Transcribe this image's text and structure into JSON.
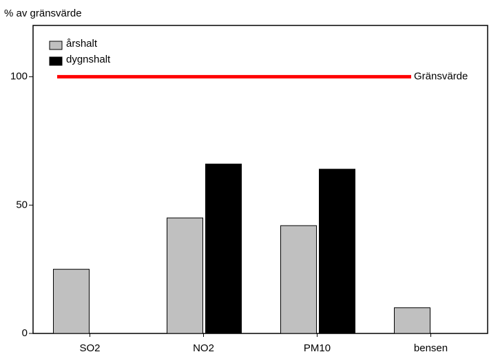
{
  "chart_data": {
    "type": "bar",
    "y_label": "% av gränsvärde",
    "categories": [
      "SO2",
      "NO2",
      "PM10",
      "bensen"
    ],
    "series": [
      {
        "name": "årshalt",
        "color": "#c0c0c0",
        "values": [
          25,
          45,
          42,
          10
        ]
      },
      {
        "name": "dygnshalt",
        "color": "#000000",
        "values": [
          null,
          66,
          64,
          null
        ]
      }
    ],
    "ylim": [
      0,
      120
    ],
    "yticks": [
      0,
      50,
      100
    ],
    "legend": "top-left",
    "reference_line": {
      "value": 100,
      "label": "Gränsvärde",
      "color": "#ff0000"
    }
  }
}
